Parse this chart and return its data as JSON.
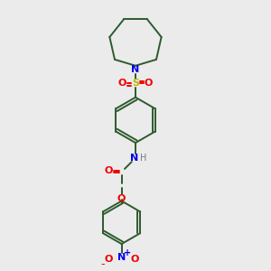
{
  "bg_color": "#ebebeb",
  "bond_color": "#2d5a2d",
  "N_color": "#0000ee",
  "O_color": "#ee0000",
  "S_color": "#bbbb00",
  "H_color": "#777777",
  "line_width": 1.4,
  "figsize": [
    3.0,
    3.0
  ],
  "dpi": 100,
  "xlim": [
    0,
    10
  ],
  "ylim": [
    0,
    10
  ]
}
